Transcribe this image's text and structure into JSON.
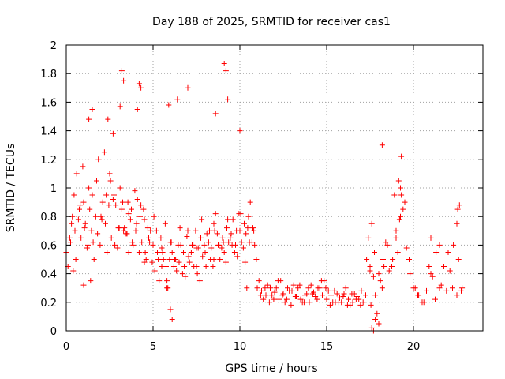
{
  "chart_data": {
    "type": "scatter",
    "title": "Day 188 of 2025, SRMTID for receiver cas1",
    "xlabel": "GPS time / hours",
    "ylabel": "SRMTID / TECUs",
    "xlim": [
      0,
      24
    ],
    "ylim": [
      0,
      2
    ],
    "x_ticks": [
      0,
      5,
      10,
      15,
      20
    ],
    "y_ticks": [
      0,
      0.2,
      0.4,
      0.6,
      0.8,
      1,
      1.2,
      1.4,
      1.6,
      1.8,
      2
    ],
    "x_tick_labels": [
      "0",
      "5",
      "10",
      "15",
      "20"
    ],
    "y_tick_labels": [
      "0",
      "0.2",
      "0.4",
      "0.6",
      "0.8",
      "1",
      "1.2",
      "1.4",
      "1.6",
      "1.8",
      "2"
    ],
    "grid": true,
    "marker": "+",
    "color": "#ff0000",
    "series": [
      {
        "name": "SRMTID",
        "x": [
          0.0,
          0.25,
          0.5,
          0.75,
          1.0,
          1.25,
          1.5,
          1.75,
          2.0,
          2.25,
          2.5,
          2.75,
          3.0,
          3.25,
          3.5,
          3.75,
          4.0,
          4.25,
          4.5,
          4.75,
          5.0,
          5.25,
          5.5,
          5.75,
          6.0,
          6.25,
          6.5,
          6.75,
          7.0,
          7.25,
          7.5,
          7.75,
          8.0,
          8.25,
          8.5,
          8.75,
          9.0,
          9.25,
          9.5,
          9.75,
          10.0,
          10.25,
          10.5,
          10.75,
          11.0,
          11.25,
          11.5,
          11.75,
          12.0,
          12.25,
          12.5,
          12.75,
          13.0,
          13.25,
          13.5,
          13.75,
          14.0,
          14.25,
          14.5,
          14.75,
          15.0,
          15.25,
          15.5,
          15.75,
          16.0,
          16.25,
          16.5,
          16.75,
          17.0,
          17.25,
          17.5,
          17.75,
          18.0,
          18.25,
          18.5,
          18.75,
          19.0,
          19.25,
          19.5,
          19.75,
          20.0,
          20.25,
          20.5,
          20.75,
          21.0,
          21.25,
          21.5,
          21.75,
          22.0,
          22.25,
          22.5,
          22.75,
          0.1,
          0.35,
          0.6,
          0.85,
          1.1,
          1.35,
          1.6,
          1.85,
          2.1,
          2.35,
          2.6,
          2.85,
          3.1,
          3.35,
          3.6,
          3.85,
          4.1,
          4.35,
          4.6,
          4.85,
          5.1,
          5.35,
          5.6,
          5.85,
          6.1,
          6.35,
          6.6,
          6.85,
          7.1,
          7.35,
          7.6,
          7.85,
          8.1,
          8.35,
          8.6,
          8.85,
          9.1,
          9.35,
          9.6,
          9.85,
          10.1,
          10.35,
          10.6,
          10.85,
          0.2,
          0.45,
          0.7,
          0.95,
          1.2,
          1.45,
          1.7,
          1.95,
          2.2,
          2.45,
          2.7,
          2.95,
          3.2,
          3.45,
          3.7,
          3.95,
          4.2,
          4.45,
          4.7,
          4.95,
          5.2,
          5.45,
          5.7,
          5.95,
          6.2,
          6.45,
          6.7,
          6.95,
          7.2,
          7.45,
          7.7,
          7.95,
          8.2,
          8.45,
          8.7,
          8.95,
          9.2,
          9.45,
          9.7,
          9.95,
          10.2,
          10.45,
          10.7,
          10.95,
          0.3,
          0.55,
          0.8,
          1.05,
          1.3,
          1.55,
          1.8,
          2.05,
          2.3,
          2.55,
          2.8,
          3.05,
          3.3,
          3.55,
          3.8,
          4.05,
          4.3,
          4.55,
          4.8,
          5.05,
          5.3,
          5.55,
          5.8,
          6.05,
          6.3,
          6.55,
          6.8,
          7.05,
          7.3,
          7.55,
          7.8,
          8.05,
          8.3,
          8.55,
          8.8,
          9.05,
          9.3,
          9.55,
          9.8,
          10.05,
          10.3,
          10.55,
          10.8,
          11.1,
          11.35,
          11.6,
          11.85,
          12.1,
          12.35,
          12.6,
          12.85,
          13.1,
          13.35,
          13.6,
          13.85,
          14.1,
          14.35,
          14.6,
          14.85,
          15.1,
          15.35,
          15.6,
          15.85,
          16.1,
          16.35,
          16.6,
          16.85,
          17.1,
          11.2,
          11.45,
          11.7,
          11.95,
          12.2,
          12.45,
          12.7,
          12.95,
          13.2,
          13.45,
          13.7,
          13.95,
          14.2,
          14.45,
          14.7,
          14.95,
          15.2,
          15.45,
          15.7,
          15.95,
          16.2,
          16.45,
          16.7,
          16.95,
          17.3,
          17.4,
          17.5,
          17.6,
          17.7,
          17.8,
          17.9,
          18.0,
          18.1,
          18.2,
          18.3,
          18.4,
          18.6,
          18.8,
          19.0,
          19.1,
          19.2,
          19.3,
          19.4,
          19.6,
          19.8,
          20.1,
          20.3,
          20.6,
          20.9,
          21.1,
          21.3,
          21.6,
          21.9,
          22.1,
          22.3,
          22.6,
          22.8,
          3.2,
          3.3,
          9.1,
          9.2,
          18.2,
          19.3,
          4.2,
          4.3,
          5.9,
          6.4,
          7.0,
          8.6,
          3.1,
          1.5,
          10.0,
          1.3,
          2.4,
          2.7,
          4.1,
          9.3,
          5.8,
          6.0,
          6.1,
          7.5,
          3.6,
          1.4,
          4.5,
          5.5,
          8.5,
          0.0,
          0.4,
          1.0,
          10.4,
          17.6,
          17.7,
          17.8,
          17.55,
          22.55,
          22.65,
          22.5,
          19.15,
          19.25,
          18.9,
          21.0,
          21.5
        ],
        "y": [
          0.55,
          0.62,
          0.7,
          0.85,
          0.9,
          0.6,
          0.95,
          1.05,
          0.8,
          0.75,
          1.1,
          0.95,
          0.72,
          0.9,
          0.68,
          0.85,
          0.7,
          0.8,
          0.78,
          0.65,
          0.6,
          0.55,
          0.58,
          0.45,
          0.62,
          0.5,
          0.48,
          0.55,
          0.7,
          0.6,
          0.58,
          0.65,
          0.55,
          0.7,
          0.75,
          0.6,
          0.65,
          0.72,
          0.68,
          0.6,
          0.7,
          0.75,
          0.8,
          0.72,
          0.3,
          0.28,
          0.25,
          0.3,
          0.27,
          0.22,
          0.26,
          0.3,
          0.28,
          0.24,
          0.22,
          0.25,
          0.2,
          0.27,
          0.3,
          0.25,
          0.22,
          0.25,
          0.2,
          0.23,
          0.26,
          0.22,
          0.2,
          0.24,
          0.28,
          0.25,
          0.45,
          0.55,
          0.4,
          0.5,
          0.6,
          0.45,
          0.7,
          0.8,
          0.9,
          0.5,
          0.3,
          0.25,
          0.2,
          0.28,
          0.4,
          0.22,
          0.3,
          0.45,
          0.55,
          0.3,
          0.25,
          0.28,
          0.45,
          0.8,
          1.1,
          0.65,
          0.75,
          0.85,
          0.5,
          1.2,
          0.9,
          0.55,
          0.65,
          0.88,
          1.0,
          0.72,
          0.82,
          0.6,
          0.92,
          0.62,
          0.5,
          0.7,
          0.42,
          0.35,
          0.5,
          0.3,
          0.55,
          0.42,
          0.6,
          0.38,
          0.48,
          0.45,
          0.58,
          0.52,
          0.68,
          0.58,
          0.82,
          0.5,
          0.55,
          0.62,
          0.78,
          0.52,
          0.62,
          0.68,
          0.9,
          0.6,
          0.65,
          0.95,
          0.78,
          1.15,
          0.58,
          0.7,
          0.8,
          0.6,
          1.25,
          0.88,
          0.92,
          0.58,
          0.85,
          0.68,
          0.78,
          0.98,
          0.55,
          0.85,
          0.72,
          0.48,
          0.7,
          0.65,
          0.75,
          0.5,
          0.45,
          0.6,
          0.4,
          0.66,
          0.55,
          0.7,
          0.35,
          0.6,
          0.62,
          0.45,
          0.68,
          0.58,
          0.48,
          0.65,
          0.55,
          0.82,
          0.58,
          0.72,
          0.62,
          0.5,
          0.75,
          0.5,
          0.88,
          0.72,
          1.0,
          0.62,
          0.68,
          0.78,
          0.95,
          1.05,
          0.6,
          0.72,
          0.7,
          0.9,
          0.62,
          0.75,
          0.88,
          0.55,
          0.62,
          0.8,
          0.5,
          0.55,
          0.35,
          0.62,
          0.5,
          0.72,
          0.45,
          0.52,
          0.6,
          0.4,
          0.78,
          0.45,
          0.5,
          0.7,
          0.6,
          0.62,
          0.78,
          0.6,
          0.7,
          0.82,
          0.48,
          0.62,
          0.7,
          0.35,
          0.22,
          0.32,
          0.25,
          0.3,
          0.35,
          0.2,
          0.28,
          0.32,
          0.3,
          0.2,
          0.26,
          0.32,
          0.24,
          0.3,
          0.35,
          0.28,
          0.2,
          0.26,
          0.2,
          0.3,
          0.18,
          0.26,
          0.22,
          0.2,
          0.25,
          0.3,
          0.2,
          0.22,
          0.35,
          0.25,
          0.22,
          0.18,
          0.24,
          0.32,
          0.2,
          0.3,
          0.26,
          0.22,
          0.35,
          0.3,
          0.18,
          0.28,
          0.2,
          0.24,
          0.18,
          0.26,
          0.22,
          0.18,
          0.5,
          0.65,
          0.42,
          0.75,
          0.38,
          0.25,
          0.12,
          0.05,
          0.35,
          0.3,
          0.45,
          0.62,
          0.42,
          0.5,
          0.65,
          0.55,
          0.78,
          0.95,
          0.85,
          0.58,
          0.4,
          0.3,
          0.25,
          0.2,
          0.45,
          0.38,
          0.55,
          0.32,
          0.28,
          0.42,
          0.6,
          0.5,
          0.3,
          1.82,
          1.75,
          1.87,
          1.82,
          1.3,
          1.22,
          1.73,
          1.7,
          1.58,
          1.62,
          1.7,
          1.52,
          1.57,
          1.55,
          1.4,
          1.48,
          1.48,
          1.38,
          1.55,
          1.62,
          0.3,
          0.15,
          0.08,
          0.45,
          0.55,
          0.35,
          0.48,
          0.45,
          0.5,
          0.55,
          0.42,
          0.32,
          0.3,
          0.02,
          0.0,
          0.08,
          0.18,
          0.85,
          0.88,
          0.75,
          1.05,
          1.0,
          0.95,
          0.65,
          0.6
        ]
      }
    ]
  }
}
